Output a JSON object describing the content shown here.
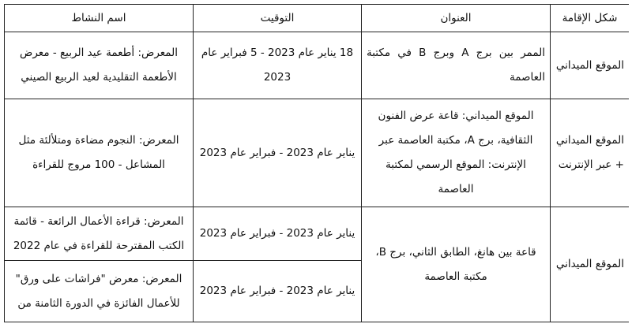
{
  "headers": [
    "شكل الإقامة",
    "العنوان",
    "التوقيت",
    "اسم النشاط"
  ],
  "rows": [
    {
      "form": "الموقع الميداني",
      "address": "الممر بين برج A وبرج B في مكتبة العاصمة",
      "timing": "18 يناير عام 2023 - 5 فبراير عام 2023",
      "activity": "المعرض: أطعمة عيد الربيع - معرض الأطعمة التقليدية لعيد الربيع الصيني"
    },
    {
      "form": "الموقع الميداني + عبر الإنترنت",
      "address": "الموقع الميداني: قاعة عرض الفنون الثقافية، برج A، مكتبة العاصمة عبر الإنترنت: الموقع الرسمي لمكتبة العاصمة",
      "timing": "يناير عام 2023 - فبراير عام 2023",
      "activity": "المعرض: النجوم مضاءة ومتلألئة مثل المشاعل - 100 مروج للقراءة"
    },
    {
      "form": "الموقع الميداني",
      "address": "قاعة بين هانغ، الطابق الثاني، برج B، مكتبة العاصمة",
      "timing": "يناير عام 2023 - فبراير عام 2023",
      "activity": "المعرض: قراءة الأعمال الرائعة - قائمة الكتب المقترحة للقراءة في عام 2022"
    },
    {
      "timing": "يناير عام 2023 - فبراير عام 2023",
      "activity": "المعرض: معرض \"فراشات على ورق\" للأعمال الفائزة في الدورة الثامنة من"
    }
  ]
}
